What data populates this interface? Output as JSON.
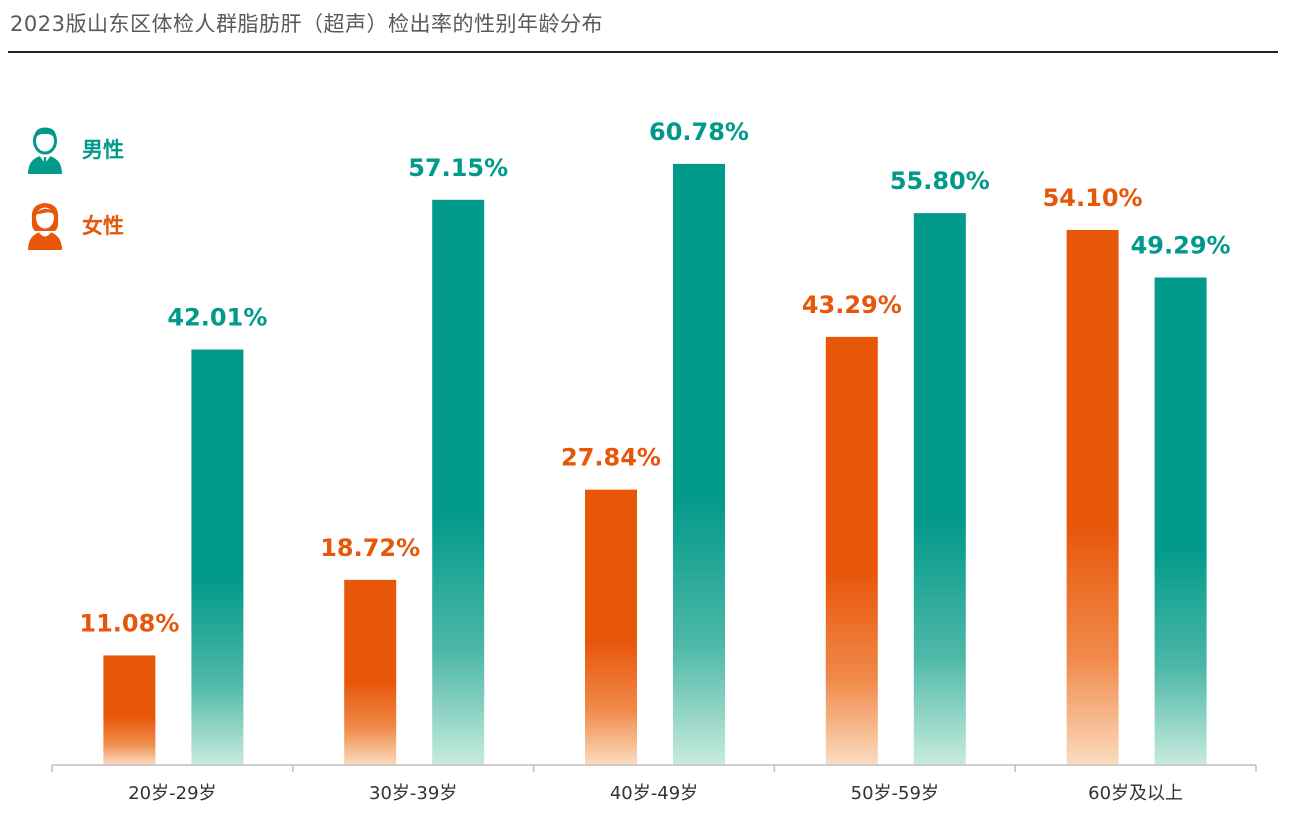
{
  "title": "2023版山东区体检人群脂肪肝（超声）检出率的性别年龄分布",
  "legend": {
    "male": {
      "label": "男性",
      "icon": "man-icon",
      "color": "#00998A"
    },
    "female": {
      "label": "女性",
      "icon": "woman-icon",
      "color": "#E8560A"
    }
  },
  "chart_data": {
    "type": "bar",
    "categories": [
      "20岁-29岁",
      "30岁-39岁",
      "40岁-49岁",
      "50岁-59岁",
      "60岁及以上"
    ],
    "series": [
      {
        "name": "女性",
        "color": "#E8560A",
        "values": [
          11.08,
          18.72,
          27.84,
          43.29,
          54.1
        ],
        "labels": [
          "11.08%",
          "18.72%",
          "27.84%",
          "43.29%",
          "54.10%"
        ]
      },
      {
        "name": "男性",
        "color": "#00998A",
        "values": [
          42.01,
          57.15,
          60.78,
          55.8,
          49.29
        ],
        "labels": [
          "42.01%",
          "57.15%",
          "60.78%",
          "55.80%",
          "49.29%"
        ]
      }
    ],
    "ylim": [
      0,
      65
    ],
    "grid": false,
    "legend_position": "top-left",
    "unit": "%"
  }
}
